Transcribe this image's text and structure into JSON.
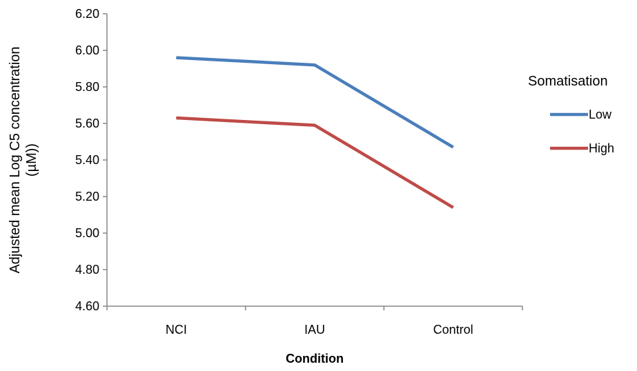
{
  "chart_data": {
    "type": "line",
    "title": "",
    "xlabel": "Condition",
    "ylabel_lines": [
      "Adjusted mean Log C5 concentration",
      "(µM))"
    ],
    "categories": [
      "NCI",
      "IAU",
      "Control"
    ],
    "ylim": [
      4.6,
      6.2
    ],
    "y_ticks": [
      "4.60",
      "4.80",
      "5.00",
      "5.20",
      "5.40",
      "5.60",
      "5.80",
      "6.00",
      "6.20"
    ],
    "series": [
      {
        "name": "Low",
        "color": "#4a7ebb",
        "values": [
          5.96,
          5.92,
          5.47
        ]
      },
      {
        "name": "High",
        "color": "#be4b48",
        "values": [
          5.63,
          5.59,
          5.14
        ]
      }
    ],
    "legend": {
      "title": "Somatisation",
      "position": "right"
    },
    "grid": false
  }
}
